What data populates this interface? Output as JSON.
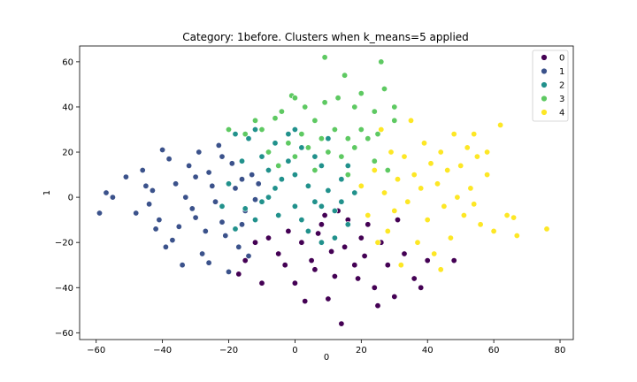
{
  "chart_data": {
    "type": "scatter",
    "title": "Category: 1before. Clusters when k_means=5 applied",
    "xlabel": "0",
    "ylabel": "1",
    "xlim": [
      -65,
      84
    ],
    "ylim": [
      -63,
      67
    ],
    "xticks": [
      -60,
      -40,
      -20,
      0,
      20,
      40,
      60,
      80
    ],
    "yticks": [
      -60,
      -40,
      -20,
      0,
      20,
      40,
      60
    ],
    "grid": false,
    "legend_position": "top-right",
    "series": [
      {
        "name": "0",
        "color": "#440154",
        "points": [
          [
            2,
            -20
          ],
          [
            5,
            -28
          ],
          [
            8,
            -12
          ],
          [
            12,
            -35
          ],
          [
            15,
            -22
          ],
          [
            -2,
            -15
          ],
          [
            0,
            -38
          ],
          [
            10,
            -45
          ],
          [
            18,
            -30
          ],
          [
            20,
            -18
          ],
          [
            24,
            -40
          ],
          [
            28,
            -30
          ],
          [
            30,
            -44
          ],
          [
            36,
            -36
          ],
          [
            40,
            -28
          ],
          [
            44,
            -32
          ],
          [
            -5,
            -25
          ],
          [
            -8,
            -18
          ],
          [
            -12,
            -20
          ],
          [
            -15,
            -28
          ],
          [
            -17,
            -34
          ],
          [
            14,
            -56
          ],
          [
            6,
            -32
          ],
          [
            9,
            -8
          ],
          [
            16,
            -10
          ],
          [
            22,
            -12
          ],
          [
            26,
            -20
          ],
          [
            33,
            -25
          ],
          [
            38,
            -40
          ],
          [
            48,
            -28
          ],
          [
            -10,
            -38
          ],
          [
            3,
            -46
          ],
          [
            11,
            -24
          ],
          [
            19,
            -36
          ],
          [
            25,
            -48
          ],
          [
            7,
            -16
          ],
          [
            13,
            -6
          ],
          [
            -3,
            -30
          ],
          [
            31,
            -10
          ],
          [
            21,
            -26
          ]
        ]
      },
      {
        "name": "1",
        "color": "#3b528b",
        "points": [
          [
            -59,
            -7
          ],
          [
            -57,
            2
          ],
          [
            -55,
            0
          ],
          [
            -51,
            9
          ],
          [
            -48,
            -7
          ],
          [
            -46,
            12
          ],
          [
            -44,
            -3
          ],
          [
            -43,
            3
          ],
          [
            -41,
            -10
          ],
          [
            -40,
            21
          ],
          [
            -38,
            17
          ],
          [
            -37,
            -19
          ],
          [
            -36,
            6
          ],
          [
            -35,
            -13
          ],
          [
            -34,
            -30
          ],
          [
            -33,
            0
          ],
          [
            -32,
            14
          ],
          [
            -31,
            -5
          ],
          [
            -30,
            -9
          ],
          [
            -29,
            20
          ],
          [
            -28,
            -25
          ],
          [
            -27,
            -15
          ],
          [
            -26,
            11
          ],
          [
            -25,
            5
          ],
          [
            -24,
            -2
          ],
          [
            -23,
            23
          ],
          [
            -22,
            -11
          ],
          [
            -21,
            -17
          ],
          [
            -20,
            -33
          ],
          [
            -19,
            15
          ],
          [
            -18,
            4
          ],
          [
            -17,
            -22
          ],
          [
            -16,
            8
          ],
          [
            -15,
            -6
          ],
          [
            -14,
            -26
          ],
          [
            -13,
            10
          ],
          [
            -12,
            -1
          ],
          [
            -11,
            6
          ],
          [
            -42,
            -14
          ],
          [
            -45,
            5
          ],
          [
            -39,
            -22
          ],
          [
            -30,
            9
          ],
          [
            -26,
            -29
          ],
          [
            -22,
            18
          ],
          [
            -16,
            -12
          ]
        ]
      },
      {
        "name": "2",
        "color": "#21918c",
        "points": [
          [
            -18,
            28
          ],
          [
            -14,
            26
          ],
          [
            -12,
            30
          ],
          [
            -10,
            18
          ],
          [
            -8,
            12
          ],
          [
            -6,
            24
          ],
          [
            -4,
            8
          ],
          [
            -2,
            16
          ],
          [
            0,
            10
          ],
          [
            2,
            22
          ],
          [
            4,
            5
          ],
          [
            6,
            -2
          ],
          [
            8,
            14
          ],
          [
            10,
            3
          ],
          [
            12,
            -6
          ],
          [
            14,
            8
          ],
          [
            16,
            -12
          ],
          [
            18,
            2
          ],
          [
            -15,
            -5
          ],
          [
            -12,
            -10
          ],
          [
            -8,
            0
          ],
          [
            -5,
            -8
          ],
          [
            0,
            -4
          ],
          [
            4,
            -15
          ],
          [
            8,
            -20
          ],
          [
            12,
            -18
          ],
          [
            -20,
            6
          ],
          [
            -22,
            -4
          ],
          [
            -18,
            -14
          ],
          [
            -2,
            28
          ],
          [
            6,
            18
          ],
          [
            10,
            26
          ],
          [
            -6,
            4
          ],
          [
            2,
            -10
          ],
          [
            16,
            14
          ],
          [
            -16,
            16
          ],
          [
            -10,
            -2
          ],
          [
            0,
            30
          ],
          [
            8,
            -4
          ],
          [
            14,
            -2
          ]
        ]
      },
      {
        "name": "3",
        "color": "#5ec962",
        "points": [
          [
            9,
            62
          ],
          [
            15,
            54
          ],
          [
            26,
            60
          ],
          [
            -1,
            45
          ],
          [
            0,
            44
          ],
          [
            3,
            40
          ],
          [
            9,
            42
          ],
          [
            13,
            44
          ],
          [
            18,
            40
          ],
          [
            20,
            46
          ],
          [
            24,
            38
          ],
          [
            27,
            48
          ],
          [
            30,
            40
          ],
          [
            -6,
            35
          ],
          [
            -10,
            30
          ],
          [
            -12,
            34
          ],
          [
            -15,
            28
          ],
          [
            -20,
            30
          ],
          [
            -4,
            38
          ],
          [
            2,
            28
          ],
          [
            6,
            34
          ],
          [
            12,
            30
          ],
          [
            16,
            26
          ],
          [
            20,
            30
          ],
          [
            25,
            28
          ],
          [
            30,
            34
          ],
          [
            -2,
            24
          ],
          [
            4,
            22
          ],
          [
            10,
            20
          ],
          [
            14,
            18
          ],
          [
            18,
            22
          ],
          [
            22,
            26
          ],
          [
            -8,
            20
          ],
          [
            0,
            18
          ],
          [
            6,
            12
          ],
          [
            16,
            10
          ],
          [
            24,
            16
          ],
          [
            28,
            12
          ],
          [
            -5,
            14
          ],
          [
            8,
            26
          ]
        ]
      },
      {
        "name": "4",
        "color": "#fde725",
        "points": [
          [
            20,
            5
          ],
          [
            22,
            -8
          ],
          [
            24,
            12
          ],
          [
            25,
            -20
          ],
          [
            26,
            30
          ],
          [
            27,
            2
          ],
          [
            28,
            -15
          ],
          [
            29,
            20
          ],
          [
            30,
            -6
          ],
          [
            31,
            8
          ],
          [
            32,
            -30
          ],
          [
            33,
            18
          ],
          [
            34,
            -2
          ],
          [
            35,
            34
          ],
          [
            36,
            10
          ],
          [
            37,
            -20
          ],
          [
            38,
            4
          ],
          [
            39,
            24
          ],
          [
            40,
            -10
          ],
          [
            41,
            15
          ],
          [
            42,
            -25
          ],
          [
            43,
            6
          ],
          [
            44,
            20
          ],
          [
            45,
            -4
          ],
          [
            46,
            12
          ],
          [
            47,
            -18
          ],
          [
            48,
            28
          ],
          [
            49,
            0
          ],
          [
            50,
            14
          ],
          [
            51,
            -8
          ],
          [
            52,
            22
          ],
          [
            53,
            4
          ],
          [
            54,
            -3
          ],
          [
            55,
            18
          ],
          [
            56,
            -12
          ],
          [
            58,
            10
          ],
          [
            60,
            -15
          ],
          [
            62,
            32
          ],
          [
            64,
            -8
          ],
          [
            67,
            -17
          ],
          [
            76,
            -14
          ],
          [
            66,
            -9
          ],
          [
            58,
            20
          ],
          [
            54,
            28
          ],
          [
            44,
            -32
          ]
        ]
      }
    ]
  }
}
